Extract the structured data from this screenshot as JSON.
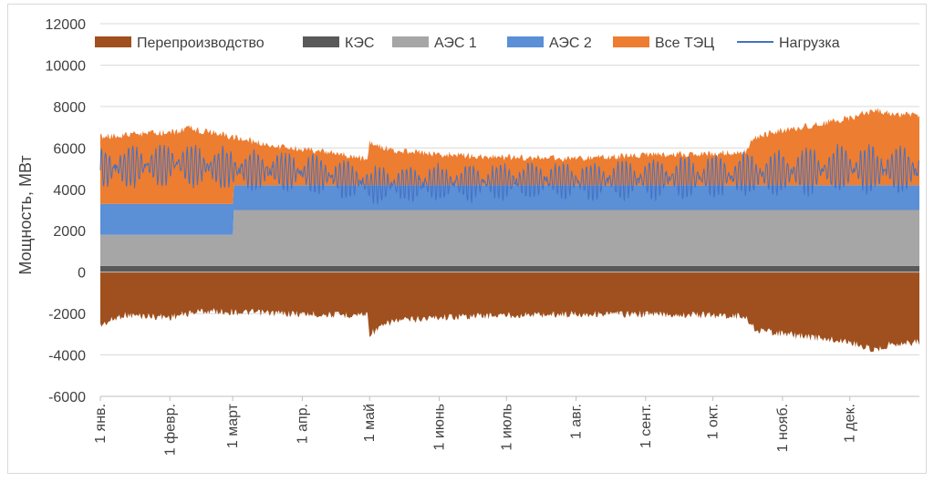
{
  "chart_data": {
    "type": "area",
    "ylabel": "Мощность, МВт",
    "xlabel": "",
    "ylim": [
      -6000,
      12000
    ],
    "yticks": [
      -6000,
      -4000,
      -2000,
      0,
      2000,
      4000,
      6000,
      8000,
      10000,
      12000
    ],
    "grid": "horizontal",
    "legend_position": "top",
    "categories": [
      "1 янв.",
      "1 февр.",
      "1 март",
      "1 апр.",
      "1 май",
      "1 июнь",
      "1 июль",
      "1 авг.",
      "1 сент.",
      "1 окт.",
      "1 нояб.",
      "1 дек."
    ],
    "x_days": [
      0,
      31,
      59,
      90,
      120,
      151,
      181,
      212,
      243,
      273,
      304,
      334,
      365
    ],
    "series": [
      {
        "name": "Перепроизводство",
        "kind": "area",
        "color": "#a0501e",
        "points": [
          [
            0,
            -2400
          ],
          [
            10,
            -1900
          ],
          [
            31,
            -2000
          ],
          [
            45,
            -1700
          ],
          [
            59,
            -1750
          ],
          [
            75,
            -1800
          ],
          [
            90,
            -1850
          ],
          [
            110,
            -1900
          ],
          [
            119,
            -1850
          ],
          [
            120,
            -2800
          ],
          [
            130,
            -2200
          ],
          [
            151,
            -2000
          ],
          [
            181,
            -1900
          ],
          [
            212,
            -1850
          ],
          [
            243,
            -1850
          ],
          [
            270,
            -1900
          ],
          [
            287,
            -1950
          ],
          [
            292,
            -2600
          ],
          [
            304,
            -2800
          ],
          [
            334,
            -3200
          ],
          [
            345,
            -3600
          ],
          [
            352,
            -3300
          ],
          [
            365,
            -3200
          ]
        ]
      },
      {
        "name": "КЭС",
        "kind": "area",
        "color": "#595959",
        "points": [
          [
            0,
            300
          ],
          [
            365,
            300
          ]
        ]
      },
      {
        "name": "АЭС 1",
        "kind": "area",
        "color": "#a6a6a6",
        "points": [
          [
            0,
            1500
          ],
          [
            59,
            1500
          ],
          [
            59.01,
            2700
          ],
          [
            365,
            2700
          ]
        ]
      },
      {
        "name": "АЭС 2",
        "kind": "area",
        "color": "#5b8fd6",
        "points": [
          [
            0,
            1500
          ],
          [
            59,
            1500
          ],
          [
            59.01,
            1200
          ],
          [
            365,
            1200
          ]
        ]
      },
      {
        "name": "Все ТЭЦ",
        "kind": "area",
        "color": "#ed7d31",
        "points": [
          [
            0,
            6700
          ],
          [
            20,
            6850
          ],
          [
            31,
            6900
          ],
          [
            40,
            7100
          ],
          [
            59,
            6700
          ],
          [
            75,
            6300
          ],
          [
            90,
            6100
          ],
          [
            105,
            5900
          ],
          [
            119,
            5600
          ],
          [
            120,
            6400
          ],
          [
            130,
            6050
          ],
          [
            151,
            5850
          ],
          [
            181,
            5700
          ],
          [
            212,
            5650
          ],
          [
            243,
            5800
          ],
          [
            270,
            5900
          ],
          [
            287,
            5950
          ],
          [
            292,
            6700
          ],
          [
            304,
            7000
          ],
          [
            334,
            7600
          ],
          [
            345,
            8000
          ],
          [
            352,
            7800
          ],
          [
            365,
            7700
          ]
        ]
      },
      {
        "name": "Нагрузка",
        "kind": "line",
        "color": "#4472c4",
        "points": [
          [
            0,
            5000
          ],
          [
            31,
            5200
          ],
          [
            59,
            5000
          ],
          [
            90,
            4800
          ],
          [
            119,
            4300
          ],
          [
            120,
            4200
          ],
          [
            151,
            4300
          ],
          [
            181,
            4400
          ],
          [
            212,
            4400
          ],
          [
            243,
            4500
          ],
          [
            273,
            4600
          ],
          [
            304,
            4800
          ],
          [
            334,
            5000
          ],
          [
            365,
            4900
          ]
        ],
        "swing": [
          [
            0,
            1900
          ],
          [
            59,
            1800
          ],
          [
            119,
            1600
          ],
          [
            180,
            1600
          ],
          [
            243,
            1700
          ],
          [
            304,
            2000
          ],
          [
            365,
            2200
          ]
        ]
      }
    ]
  }
}
